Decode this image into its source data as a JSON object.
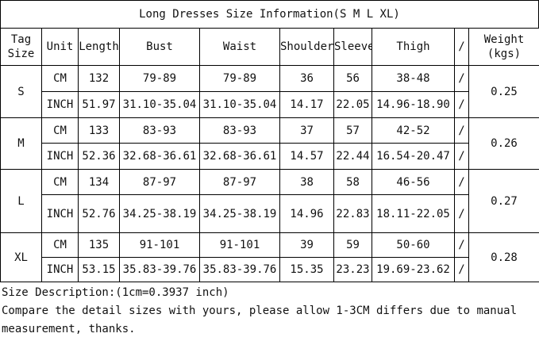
{
  "title": "Long Dresses Size Information(S M L XL)",
  "table": {
    "header": [
      "Tag Size",
      "Unit",
      "Length",
      "Bust",
      "Waist",
      "Shoulder",
      "Sleeve",
      "Thigh",
      "/",
      "Weight (kgs)"
    ],
    "sizes": [
      {
        "size": "S",
        "weight": "0.25",
        "rows": [
          [
            "CM",
            "132",
            "79-89",
            "79-89",
            "36",
            "56",
            "38-48",
            "/"
          ],
          [
            "INCH",
            "51.97",
            "31.10-35.04",
            "31.10-35.04",
            "14.17",
            "22.05",
            "14.96-18.90",
            "/"
          ]
        ]
      },
      {
        "size": "M",
        "weight": "0.26",
        "rows": [
          [
            "CM",
            "133",
            "83-93",
            "83-93",
            "37",
            "57",
            "42-52",
            "/"
          ],
          [
            "INCH",
            "52.36",
            "32.68-36.61",
            "32.68-36.61",
            "14.57",
            "22.44",
            "16.54-20.47",
            "/"
          ]
        ]
      },
      {
        "size": "L",
        "weight": "0.27",
        "rows": [
          [
            "CM",
            "134",
            "87-97",
            "87-97",
            "38",
            "58",
            "46-56",
            "/"
          ],
          [
            "INCH",
            "52.76",
            "34.25-38.19",
            "34.25-38.19",
            "14.96",
            "22.83",
            "18.11-22.05",
            "/"
          ]
        ]
      },
      {
        "size": "XL",
        "weight": "0.28",
        "rows": [
          [
            "CM",
            "135",
            "91-101",
            "91-101",
            "39",
            "59",
            "50-60",
            "/"
          ],
          [
            "INCH",
            "53.15",
            "35.83-39.76",
            "35.83-39.76",
            "15.35",
            "23.23",
            "19.69-23.62",
            "/"
          ]
        ]
      }
    ]
  },
  "notes": [
    "Size Description:(1cm=0.3937 inch)",
    "Compare the detail sizes with yours, please allow 1-3CM differs due to manual measurement, thanks."
  ]
}
